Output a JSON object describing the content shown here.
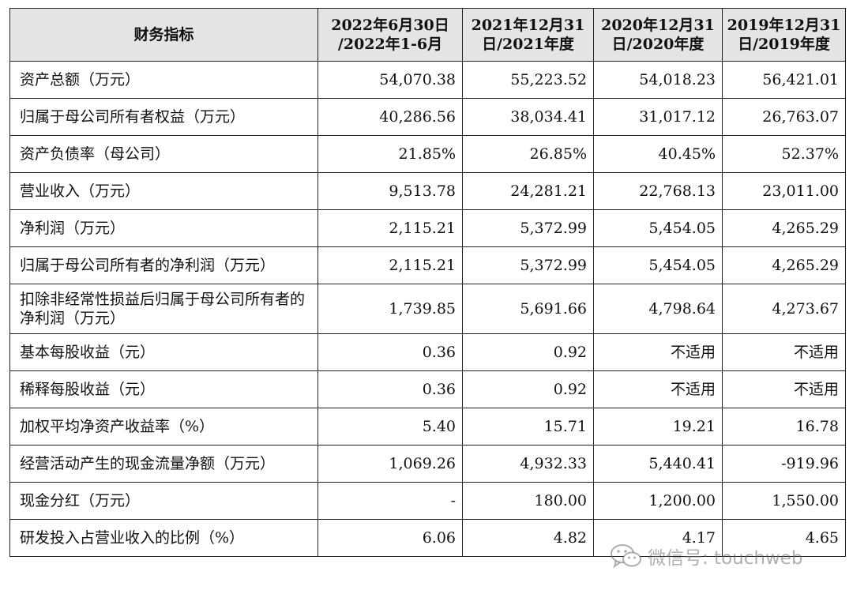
{
  "table": {
    "headers": [
      [
        "财务指标"
      ],
      [
        "2022年6月30日",
        "/2022年1-6月"
      ],
      [
        "2021年12月31",
        "日/2021年度"
      ],
      [
        "2020年12月31",
        "日/2020年度"
      ],
      [
        "2019年12月31",
        "日/2019年度"
      ]
    ],
    "rows": [
      {
        "label": "资产总额（万元）",
        "values": [
          "54,070.38",
          "55,223.52",
          "54,018.23",
          "56,421.01"
        ]
      },
      {
        "label": "归属于母公司所有者权益（万元）",
        "values": [
          "40,286.56",
          "38,034.41",
          "31,017.12",
          "26,763.07"
        ]
      },
      {
        "label": "资产负债率（母公司）",
        "values": [
          "21.85%",
          "26.85%",
          "40.45%",
          "52.37%"
        ]
      },
      {
        "label": "营业收入（万元）",
        "values": [
          "9,513.78",
          "24,281.21",
          "22,768.13",
          "23,011.00"
        ]
      },
      {
        "label": "净利润（万元）",
        "values": [
          "2,115.21",
          "5,372.99",
          "5,454.05",
          "4,265.29"
        ]
      },
      {
        "label": "归属于母公司所有者的净利润（万元）",
        "values": [
          "2,115.21",
          "5,372.99",
          "5,454.05",
          "4,265.29"
        ]
      },
      {
        "label": "扣除非经常性损益后归属于母公司所有者的净利润（万元）",
        "values": [
          "1,739.85",
          "5,691.66",
          "4,798.64",
          "4,273.67"
        ]
      },
      {
        "label": "基本每股收益（元）",
        "values": [
          "0.36",
          "0.92",
          "不适用",
          "不适用"
        ]
      },
      {
        "label": "稀释每股收益（元）",
        "values": [
          "0.36",
          "0.92",
          "不适用",
          "不适用"
        ]
      },
      {
        "label": "加权平均净资产收益率（%）",
        "values": [
          "5.40",
          "15.71",
          "19.21",
          "16.78"
        ]
      },
      {
        "label": "经营活动产生的现金流量净额（万元）",
        "values": [
          "1,069.26",
          "4,932.33",
          "5,440.41",
          "-919.96"
        ]
      },
      {
        "label": "现金分红（万元）",
        "values": [
          "-",
          "180.00",
          "1,200.00",
          "1,550.00"
        ]
      },
      {
        "label": "研发投入占营业收入的比例（%）",
        "values": [
          "6.06",
          "4.82",
          "4.17",
          "4.65"
        ]
      }
    ]
  },
  "watermark": {
    "text": "微信号: touchweb",
    "icon": "wechat-icon"
  }
}
